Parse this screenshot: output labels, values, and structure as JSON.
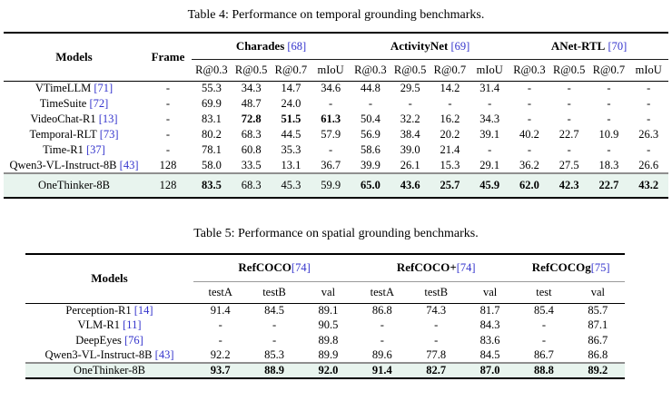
{
  "colors": {
    "citation": "#3333cc",
    "highlight_row_bg": "#e8f4ee"
  },
  "table4": {
    "caption": "Table 4: Performance on temporal grounding benchmarks.",
    "models_header": "Models",
    "frame_header": "Frame",
    "group_cite_gap": " ",
    "groups": [
      {
        "name": "Charades",
        "cite": "[68]",
        "subcols": [
          "R@0.3",
          "R@0.5",
          "R@0.7",
          "mIoU"
        ]
      },
      {
        "name": "ActivityNet",
        "cite": "[69]",
        "subcols": [
          "R@0.3",
          "R@0.5",
          "R@0.7",
          "mIoU"
        ]
      },
      {
        "name": "ANet-RTL",
        "cite": "[70]",
        "subcols": [
          "R@0.3",
          "R@0.5",
          "R@0.7",
          "mIoU"
        ]
      }
    ],
    "rows": [
      {
        "model": "VTimeLLM",
        "cite": "[71]",
        "frame": "-",
        "values": [
          "55.3",
          "34.3",
          "14.7",
          "34.6",
          "44.8",
          "29.5",
          "14.2",
          "31.4",
          "-",
          "-",
          "-",
          "-"
        ],
        "bold": [],
        "highlight": false
      },
      {
        "model": "TimeSuite",
        "cite": "[72]",
        "frame": "-",
        "values": [
          "69.9",
          "48.7",
          "24.0",
          "-",
          "-",
          "-",
          "-",
          "-",
          "-",
          "-",
          "-",
          "-"
        ],
        "bold": [],
        "highlight": false
      },
      {
        "model": "VideoChat-R1",
        "cite": "[13]",
        "frame": "-",
        "values": [
          "83.1",
          "72.8",
          "51.5",
          "61.3",
          "50.4",
          "32.2",
          "16.2",
          "34.3",
          "-",
          "-",
          "-",
          "-"
        ],
        "bold": [
          1,
          2,
          3
        ],
        "highlight": false
      },
      {
        "model": "Temporal-RLT",
        "cite": "[73]",
        "frame": "-",
        "values": [
          "80.2",
          "68.3",
          "44.5",
          "57.9",
          "56.9",
          "38.4",
          "20.2",
          "39.1",
          "40.2",
          "22.7",
          "10.9",
          "26.3"
        ],
        "bold": [],
        "highlight": false
      },
      {
        "model": "Time-R1",
        "cite": "[37]",
        "frame": "-",
        "values": [
          "78.1",
          "60.8",
          "35.3",
          "-",
          "58.6",
          "39.0",
          "21.4",
          "-",
          "-",
          "-",
          "-",
          "-"
        ],
        "bold": [],
        "highlight": false
      },
      {
        "model": "Qwen3-VL-Instruct-8B",
        "cite": "[43]",
        "frame": "128",
        "values": [
          "58.0",
          "33.5",
          "13.1",
          "36.7",
          "39.9",
          "26.1",
          "15.3",
          "29.1",
          "36.2",
          "27.5",
          "18.3",
          "26.6"
        ],
        "bold": [],
        "highlight": false
      },
      {
        "model": "OneThinker-8B",
        "cite": null,
        "frame": "128",
        "values": [
          "83.5",
          "68.3",
          "45.3",
          "59.9",
          "65.0",
          "43.6",
          "25.7",
          "45.9",
          "62.0",
          "42.3",
          "22.7",
          "43.2"
        ],
        "bold": [
          0,
          4,
          5,
          6,
          7,
          8,
          9,
          10,
          11
        ],
        "highlight": true
      }
    ]
  },
  "table5": {
    "caption": "Table 5: Performance on spatial grounding benchmarks.",
    "models_header": "Models",
    "group_cite_gap": "",
    "groups": [
      {
        "name": "RefCOCO",
        "cite": "[74]",
        "subcols": [
          "testA",
          "testB",
          "val"
        ]
      },
      {
        "name": "RefCOCO+",
        "cite": "[74]",
        "subcols": [
          "testA",
          "testB",
          "val"
        ]
      },
      {
        "name": "RefCOCOg",
        "cite": "[75]",
        "subcols": [
          "test",
          "val"
        ]
      }
    ],
    "rows": [
      {
        "model": "Perception-R1",
        "cite": "[14]",
        "values": [
          "91.4",
          "84.5",
          "89.1",
          "86.8",
          "74.3",
          "81.7",
          "85.4",
          "85.7"
        ],
        "bold": [],
        "highlight": false
      },
      {
        "model": "VLM-R1",
        "cite": "[11]",
        "values": [
          "-",
          "-",
          "90.5",
          "-",
          "-",
          "84.3",
          "-",
          "87.1"
        ],
        "bold": [],
        "highlight": false
      },
      {
        "model": "DeepEyes",
        "cite": "[76]",
        "values": [
          "-",
          "-",
          "89.8",
          "-",
          "-",
          "83.6",
          "-",
          "86.7"
        ],
        "bold": [],
        "highlight": false
      },
      {
        "model": "Qwen3-VL-Instruct-8B",
        "cite": "[43]",
        "values": [
          "92.2",
          "85.3",
          "89.9",
          "89.6",
          "77.8",
          "84.5",
          "86.7",
          "86.8"
        ],
        "bold": [],
        "highlight": false
      },
      {
        "model": "OneThinker-8B",
        "cite": null,
        "values": [
          "93.7",
          "88.9",
          "92.0",
          "91.4",
          "82.7",
          "87.0",
          "88.8",
          "89.2"
        ],
        "bold": [
          0,
          1,
          2,
          3,
          4,
          5,
          6,
          7
        ],
        "highlight": true
      }
    ]
  }
}
